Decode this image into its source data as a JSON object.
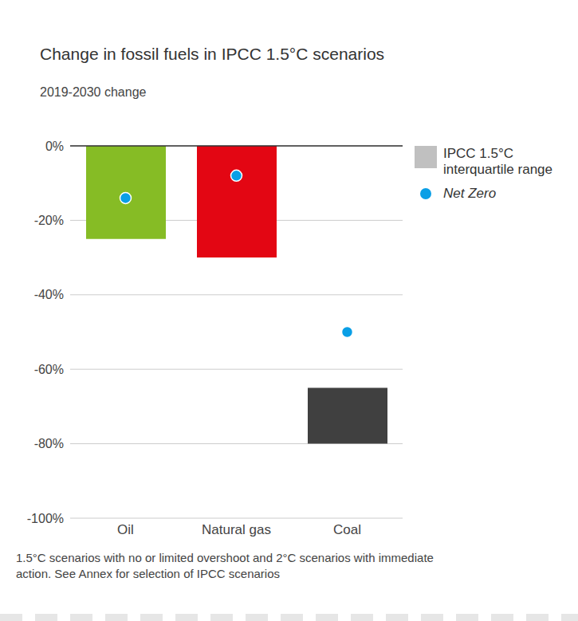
{
  "chart_data": {
    "type": "bar",
    "title": "Change in fossil fuels in IPCC 1.5°C scenarios",
    "subtitle": "2019-2030 change",
    "footnote": "1.5°C scenarios with no or limited overshoot and 2°C scenarios with immediate action. See Annex for selection of IPCC scenarios",
    "categories": [
      "Oil",
      "Natural gas",
      "Coal"
    ],
    "series": [
      {
        "name": "IPCC 1.5°C interquartile range",
        "type": "range_bar",
        "color": "#c0c0c0",
        "colors": [
          "#86bc25",
          "#e30613",
          "#404040"
        ],
        "low": [
          -25,
          -30,
          -80
        ],
        "high": [
          0,
          0,
          -65
        ]
      },
      {
        "name": "Net Zero",
        "type": "scatter",
        "color": "#0a9fe6",
        "marker": "circle",
        "values": [
          -14,
          -8,
          -50
        ]
      }
    ],
    "ylim": [
      -100,
      0
    ],
    "yticks": [
      {
        "value": 0,
        "label": "0%"
      },
      {
        "value": -20,
        "label": "-20%"
      },
      {
        "value": -40,
        "label": "-40%"
      },
      {
        "value": -60,
        "label": "-60%"
      },
      {
        "value": -80,
        "label": "-80%"
      },
      {
        "value": -100,
        "label": "-100%"
      }
    ],
    "grid": true,
    "legend": "right"
  }
}
